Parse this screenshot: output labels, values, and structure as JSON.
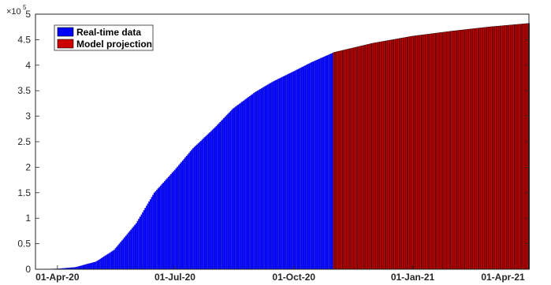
{
  "chart_data": {
    "type": "bar",
    "title": "",
    "xlabel": "",
    "ylabel": "",
    "y_multiplier_label": "×10",
    "y_multiplier_exponent": "5",
    "ylim": [
      0,
      500000
    ],
    "xlim": [
      "2020-03-15",
      "2021-04-01"
    ],
    "y_ticks": [
      0,
      50000,
      100000,
      150000,
      200000,
      250000,
      300000,
      350000,
      400000,
      450000,
      500000
    ],
    "y_tick_labels": [
      "0",
      "0.5",
      "1",
      "1.5",
      "2",
      "2.5",
      "3",
      "3.5",
      "4",
      "4.5",
      "5"
    ],
    "x_ticks": [
      {
        "date": "2020-04-01",
        "label": "01-Apr-20"
      },
      {
        "date": "2020-07-01",
        "label": "01-Jul-20"
      },
      {
        "date": "2020-10-01",
        "label": "01-Oct-20"
      },
      {
        "date": "2021-01-01",
        "label": "01-Jan-21"
      },
      {
        "date": "2021-04-01",
        "label": "01-Apr-21"
      }
    ],
    "legend_position": "top-left",
    "grid": false,
    "series": [
      {
        "name": "Real-time data",
        "color": "#0000ff",
        "points": [
          [
            "2020-03-15",
            0
          ],
          [
            "2020-04-01",
            1000
          ],
          [
            "2020-04-15",
            4000
          ],
          [
            "2020-05-01",
            15000
          ],
          [
            "2020-05-15",
            38000
          ],
          [
            "2020-06-01",
            90000
          ],
          [
            "2020-06-15",
            150000
          ],
          [
            "2020-07-01",
            195000
          ],
          [
            "2020-07-15",
            237000
          ],
          [
            "2020-08-01",
            278000
          ],
          [
            "2020-08-15",
            315000
          ],
          [
            "2020-09-01",
            347000
          ],
          [
            "2020-09-15",
            368000
          ],
          [
            "2020-10-01",
            388000
          ],
          [
            "2020-10-15",
            406000
          ],
          [
            "2020-11-01",
            425000
          ]
        ]
      },
      {
        "name": "Model projection",
        "color": "#cc0000",
        "points": [
          [
            "2020-11-01",
            425000
          ],
          [
            "2020-12-01",
            443000
          ],
          [
            "2021-01-01",
            457000
          ],
          [
            "2021-02-01",
            467000
          ],
          [
            "2021-03-01",
            475000
          ],
          [
            "2021-04-01",
            482000
          ]
        ]
      }
    ]
  }
}
